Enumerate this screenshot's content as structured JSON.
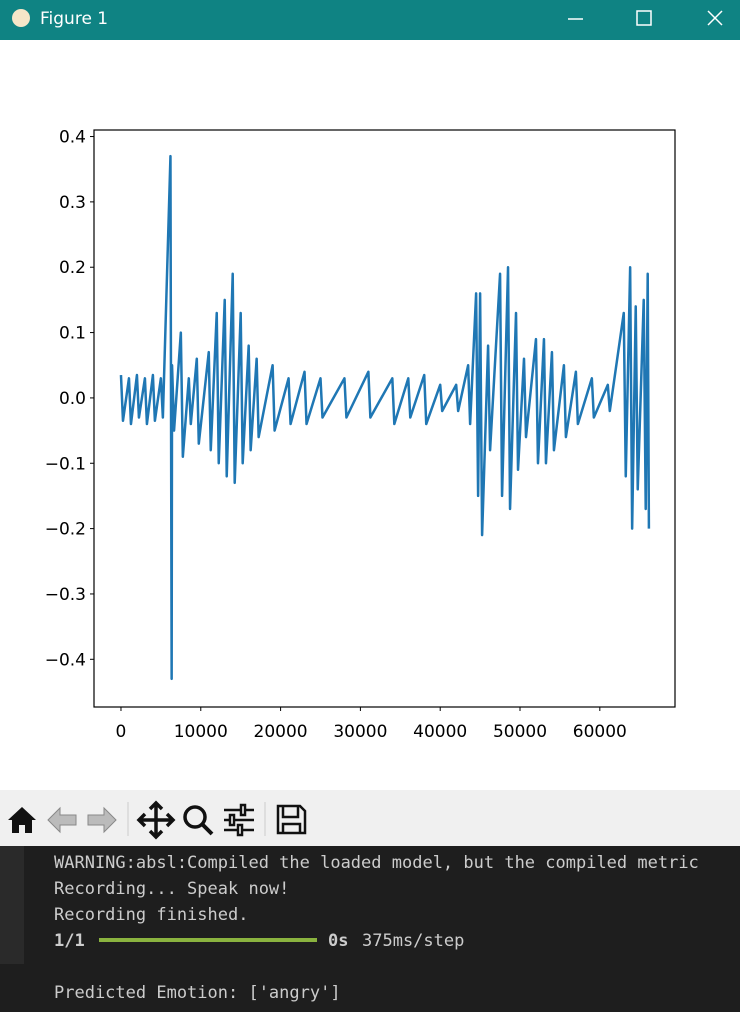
{
  "window": {
    "title": "Figure 1"
  },
  "chart_data": {
    "type": "line",
    "color": "#1f77b4",
    "x": [
      0,
      250,
      1000,
      1250,
      2000,
      2250,
      3000,
      3250,
      4000,
      4250,
      5000,
      5250,
      6200,
      6350,
      6400,
      6650,
      7500,
      7750,
      8500,
      8750,
      9500,
      9750,
      11000,
      11250,
      12000,
      12250,
      13000,
      13250,
      14000,
      14250,
      15000,
      15250,
      16000,
      16250,
      17000,
      17250,
      19000,
      19250,
      21000,
      21250,
      23000,
      23250,
      25000,
      25250,
      28000,
      28250,
      31000,
      31250,
      34000,
      34250,
      36000,
      36250,
      38000,
      38250,
      40000,
      40250,
      42000,
      42250,
      43500,
      43750,
      44500,
      44750,
      45000,
      45250,
      46000,
      46250,
      47500,
      47750,
      48500,
      48750,
      49500,
      49750,
      50500,
      50750,
      52000,
      52250,
      53000,
      53250,
      54000,
      54250,
      55500,
      55750,
      57000,
      57250,
      59000,
      59250,
      61000,
      61250,
      63000,
      63250,
      63800,
      64050,
      64500,
      64750,
      65500,
      65750,
      66000,
      66150
    ],
    "values": [
      0.035,
      -0.035,
      0.03,
      -0.04,
      0.035,
      -0.03,
      0.03,
      -0.04,
      0.035,
      -0.035,
      0.03,
      -0.03,
      0.37,
      -0.43,
      0.05,
      -0.05,
      0.1,
      -0.09,
      0.03,
      -0.04,
      0.06,
      -0.07,
      0.07,
      -0.08,
      0.13,
      -0.1,
      0.15,
      -0.12,
      0.19,
      -0.13,
      0.13,
      -0.1,
      0.08,
      -0.08,
      0.06,
      -0.06,
      0.05,
      -0.05,
      0.03,
      -0.04,
      0.04,
      -0.04,
      0.03,
      -0.03,
      0.03,
      -0.03,
      0.04,
      -0.03,
      0.03,
      -0.04,
      0.03,
      -0.03,
      0.035,
      -0.04,
      0.02,
      -0.02,
      0.02,
      -0.02,
      0.05,
      -0.04,
      0.16,
      -0.15,
      0.16,
      -0.21,
      0.08,
      -0.08,
      0.19,
      -0.15,
      0.2,
      -0.17,
      0.13,
      -0.11,
      0.06,
      -0.06,
      0.09,
      -0.1,
      0.09,
      -0.1,
      0.07,
      -0.08,
      0.05,
      -0.06,
      0.04,
      -0.04,
      0.03,
      -0.03,
      0.02,
      -0.02,
      0.13,
      -0.12,
      0.2,
      -0.2,
      0.14,
      -0.14,
      0.15,
      -0.17,
      0.19,
      -0.2
    ],
    "xlim": [
      -3380,
      69420
    ],
    "xticks": [
      0,
      10000,
      20000,
      30000,
      40000,
      50000,
      60000
    ],
    "ylim": [
      -0.473,
      0.41
    ],
    "yticks": [
      {
        "value": -0.4,
        "label": "−0.4"
      },
      {
        "value": -0.3,
        "label": "−0.3"
      },
      {
        "value": -0.2,
        "label": "−0.2"
      },
      {
        "value": -0.1,
        "label": "−0.1"
      },
      {
        "value": 0,
        "label": "0.0"
      },
      0.1,
      0.2,
      0.3,
      0.4
    ]
  },
  "terminal": {
    "lines": [
      "WARNING:absl:Compiled the loaded model, but the compiled metric",
      "Recording... Speak now!",
      "Recording finished."
    ],
    "step": "1/1",
    "time": "0s",
    "rate": "375ms/step",
    "prediction": "Predicted Emotion: ['angry']"
  }
}
